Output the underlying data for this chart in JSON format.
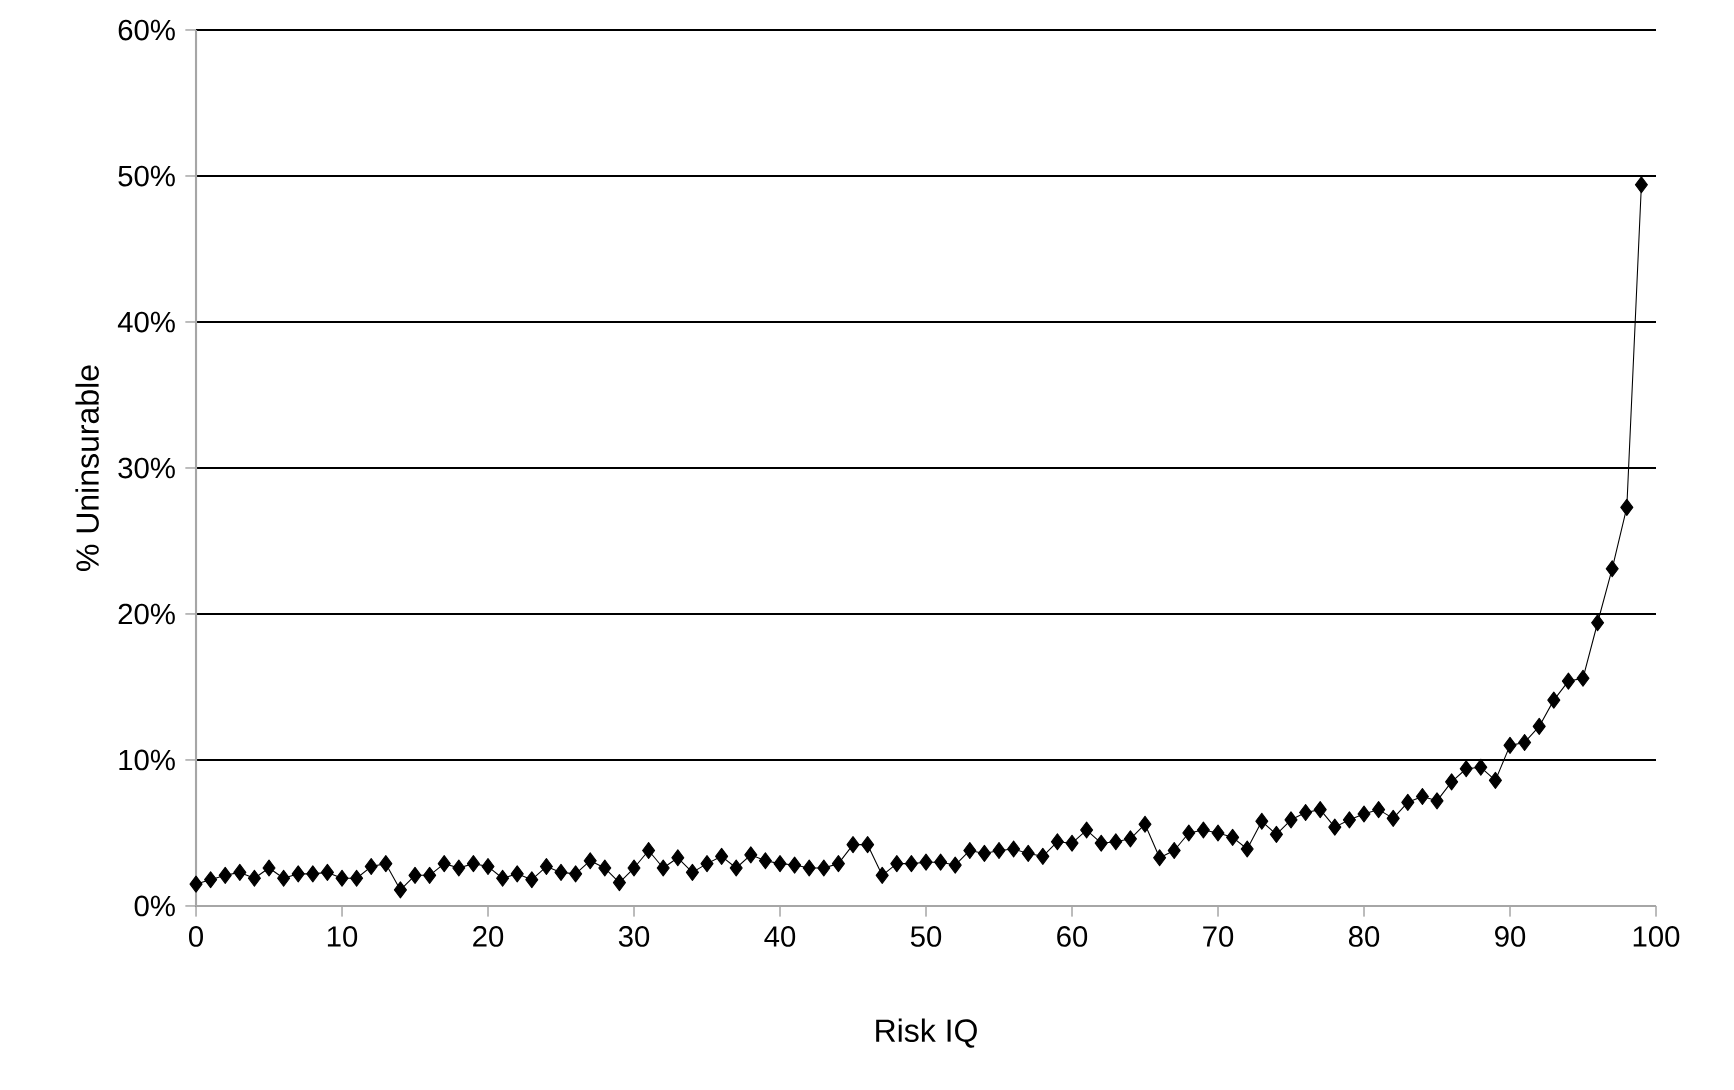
{
  "chart_data": {
    "type": "line",
    "xlabel": "Risk IQ",
    "ylabel": "% Uninsurable",
    "x": [
      0,
      1,
      2,
      3,
      4,
      5,
      6,
      7,
      8,
      9,
      10,
      11,
      12,
      13,
      14,
      15,
      16,
      17,
      18,
      19,
      20,
      21,
      22,
      23,
      24,
      25,
      26,
      27,
      28,
      29,
      30,
      31,
      32,
      33,
      34,
      35,
      36,
      37,
      38,
      39,
      40,
      41,
      42,
      43,
      44,
      45,
      46,
      47,
      48,
      49,
      50,
      51,
      52,
      53,
      54,
      55,
      56,
      57,
      58,
      59,
      60,
      61,
      62,
      63,
      64,
      65,
      66,
      67,
      68,
      69,
      70,
      71,
      72,
      73,
      74,
      75,
      76,
      77,
      78,
      79,
      80,
      81,
      82,
      83,
      84,
      85,
      86,
      87,
      88,
      89,
      90,
      91,
      92,
      93,
      94,
      95,
      96,
      97,
      98,
      99
    ],
    "series": [
      {
        "color": "#000000",
        "values": [
          1.5,
          1.8,
          2.1,
          2.3,
          1.9,
          2.6,
          1.9,
          2.2,
          2.2,
          2.3,
          1.9,
          1.9,
          2.7,
          2.9,
          1.1,
          2.1,
          2.1,
          2.9,
          2.6,
          2.9,
          2.7,
          1.9,
          2.2,
          1.8,
          2.7,
          2.3,
          2.2,
          3.1,
          2.6,
          1.6,
          2.6,
          3.8,
          2.6,
          3.3,
          2.3,
          2.9,
          3.4,
          2.6,
          3.5,
          3.1,
          2.9,
          2.8,
          2.6,
          2.6,
          2.9,
          4.2,
          4.2,
          2.1,
          2.9,
          2.9,
          3.0,
          3.0,
          2.8,
          3.8,
          3.6,
          3.8,
          3.9,
          3.6,
          3.4,
          4.4,
          4.3,
          5.2,
          4.3,
          4.4,
          4.6,
          5.6,
          3.3,
          3.8,
          5.0,
          5.2,
          5.0,
          4.7,
          3.9,
          5.8,
          4.9,
          5.9,
          6.4,
          6.6,
          5.4,
          5.9,
          6.3,
          6.6,
          6.0,
          7.1,
          7.5,
          7.2,
          8.5,
          9.4,
          9.5,
          8.6,
          11.0,
          11.2,
          12.3,
          14.1,
          15.4,
          15.6,
          19.4,
          23.1,
          27.3,
          49.4
        ]
      }
    ],
    "xlim": [
      0,
      100
    ],
    "xticks": [
      0,
      10,
      20,
      30,
      40,
      50,
      60,
      70,
      80,
      90,
      100
    ],
    "ylim": [
      0,
      60
    ],
    "yticks": [
      {
        "value": 0,
        "label": "0%"
      },
      {
        "value": 10,
        "label": "10%"
      },
      {
        "value": 20,
        "label": "20%"
      },
      {
        "value": 30,
        "label": "30%"
      },
      {
        "value": 40,
        "label": "40%"
      },
      {
        "value": 50,
        "label": "50%"
      },
      {
        "value": 60,
        "label": "60%"
      }
    ],
    "grid": "y",
    "legend": false,
    "marker": "diamond",
    "line_style": "solid"
  }
}
